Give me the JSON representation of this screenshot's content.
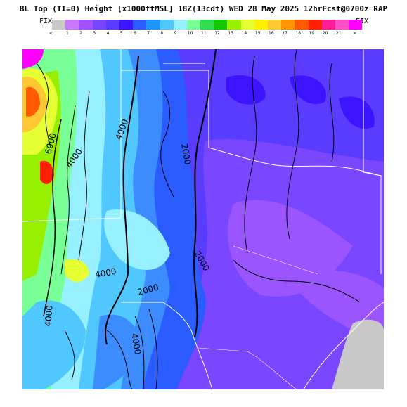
{
  "header": {
    "title": "BL Top (TI=0) Height [x1000ftMSL] 18Z(13cdt) WED 28 May 2025 12hrFcst@0700z RAP",
    "fix_left": "FIX",
    "fix_right": "FIX"
  },
  "colorbar": {
    "left_arrow": "<",
    "right_arrow": ">",
    "labels": [
      "1",
      "2",
      "3",
      "4",
      "5",
      "6",
      "7",
      "8",
      "9",
      "10",
      "11",
      "12",
      "13",
      "14",
      "15",
      "16",
      "17",
      "18",
      "19",
      "20",
      "21"
    ],
    "colors": [
      "#c8c8c8",
      "#c878ff",
      "#a050ff",
      "#7846ff",
      "#5a3cff",
      "#3c14ff",
      "#2a5cff",
      "#1e96ff",
      "#50c8ff",
      "#96f0ff",
      "#78ff96",
      "#32dc50",
      "#14c800",
      "#96f000",
      "#e6ff32",
      "#fff000",
      "#ffc832",
      "#ff9600",
      "#ff5a00",
      "#ff1e00",
      "#ff1e96",
      "#ff50c8",
      "#ff00ff"
    ]
  },
  "map": {
    "contour_labels": [
      "6000",
      "4000",
      "4000",
      "2000",
      "2000",
      "4000",
      "2000",
      "4000",
      "4000"
    ],
    "colors": {
      "purple_dark": "#5a3cff",
      "purple_light": "#7a46ff",
      "violet": "#9a55ff",
      "blue_dark": "#2a5cff",
      "blue": "#3c8cff",
      "cyan": "#50c8ff",
      "cyan_light": "#96f0ff",
      "green": "#78ff96",
      "yellow": "#e6ff32",
      "orange": "#ffc832",
      "red": "#ff5a00",
      "gray": "#c8c8c8"
    }
  }
}
